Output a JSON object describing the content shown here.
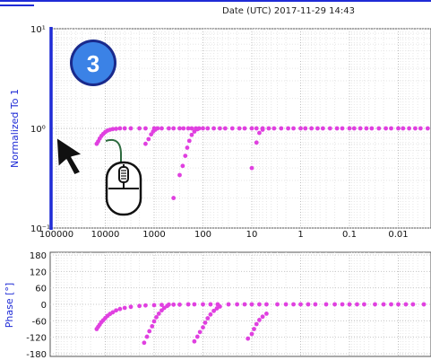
{
  "header": {
    "date_text": "Date (UTC) 2017-11-29 14:43"
  },
  "step_badge": {
    "number": "3"
  },
  "icons": [
    "mouse-scroll-icon",
    "cursor-arrow-icon"
  ],
  "colors": {
    "series": "#e040e0",
    "axis_highlight": "#1f2bd6",
    "badge_fill": "#3b82e6",
    "badge_ring": "#1a2a8c"
  },
  "chart_data": [
    {
      "type": "scatter",
      "ylabel": "Normalized To 1",
      "x_scale": "log",
      "x_reversed": true,
      "y_scale": "log",
      "xlim": [
        1000000,
        0.001
      ],
      "ylim": [
        0.1,
        10
      ],
      "x_ticks": [
        100000,
        10000,
        1000,
        100,
        10,
        1,
        0.1,
        0.01,
        0.001
      ],
      "x_tick_labels": [
        "100000",
        "10000",
        "1000",
        "100",
        "10",
        "1",
        "0.1",
        "0.01",
        "0."
      ],
      "y_ticks": [
        0.1,
        1,
        10
      ],
      "y_tick_labels": [
        "10⁻¹",
        "10⁰",
        "10¹"
      ],
      "grid": true,
      "series": [
        {
          "points": [
            [
              15000,
              0.7
            ],
            [
              14000,
              0.74
            ],
            [
              13000,
              0.79
            ],
            [
              12000,
              0.84
            ],
            [
              11000,
              0.88
            ],
            [
              10000,
              0.92
            ],
            [
              9000,
              0.95
            ],
            [
              8000,
              0.97
            ],
            [
              7000,
              0.985
            ],
            [
              6000,
              0.99
            ],
            [
              5000,
              1
            ],
            [
              4000,
              1
            ],
            [
              3000,
              1
            ],
            [
              2000,
              1
            ],
            [
              1500,
              1
            ],
            [
              1000,
              1
            ],
            [
              700,
              1
            ],
            [
              500,
              1
            ],
            [
              400,
              1
            ],
            [
              300,
              1
            ],
            [
              250,
              1
            ],
            [
              200,
              1
            ],
            [
              170,
              1
            ],
            [
              140,
              1
            ],
            [
              120,
              1
            ],
            [
              100,
              1
            ],
            [
              80,
              1
            ],
            [
              60,
              1
            ],
            [
              45,
              1
            ],
            [
              35,
              1
            ],
            [
              25,
              1
            ],
            [
              18,
              1
            ],
            [
              14,
              1
            ],
            [
              10,
              1
            ],
            [
              8,
              1
            ],
            [
              6,
              1
            ],
            [
              4.5,
              1
            ],
            [
              3.5,
              1
            ],
            [
              2.5,
              1
            ],
            [
              1.8,
              1
            ],
            [
              1.4,
              1
            ],
            [
              1,
              1
            ],
            [
              0.8,
              1
            ],
            [
              0.6,
              1
            ],
            [
              0.45,
              1
            ],
            [
              0.35,
              1
            ],
            [
              0.25,
              1
            ],
            [
              0.18,
              1
            ],
            [
              0.14,
              1
            ],
            [
              0.1,
              1
            ],
            [
              0.08,
              1
            ],
            [
              0.06,
              1
            ],
            [
              0.045,
              1
            ],
            [
              0.035,
              1
            ],
            [
              0.025,
              1
            ],
            [
              0.018,
              1
            ],
            [
              0.014,
              1
            ],
            [
              0.01,
              1
            ],
            [
              0.008,
              1
            ],
            [
              0.006,
              1
            ],
            [
              0.0045,
              1
            ],
            [
              0.0035,
              1
            ],
            [
              0.0025,
              1
            ],
            [
              0.002,
              1
            ],
            [
              0.0015,
              1
            ],
            [
              0.0012,
              1
            ],
            [
              0.001,
              1
            ],
            [
              1500,
              0.7
            ],
            [
              1300,
              0.78
            ],
            [
              1150,
              0.87
            ],
            [
              1050,
              0.93
            ],
            [
              950,
              0.97
            ],
            [
              850,
              1
            ],
            [
              400,
              0.2
            ],
            [
              300,
              0.34
            ],
            [
              260,
              0.42
            ],
            [
              230,
              0.53
            ],
            [
              210,
              0.64
            ],
            [
              190,
              0.75
            ],
            [
              170,
              0.86
            ],
            [
              150,
              0.93
            ],
            [
              130,
              0.98
            ],
            [
              10,
              0.4
            ],
            [
              8,
              0.72
            ],
            [
              7,
              0.9
            ],
            [
              6,
              0.97
            ]
          ]
        }
      ]
    },
    {
      "type": "scatter",
      "ylabel": "Phase [°]",
      "x_scale": "log",
      "x_reversed": true,
      "xlim": [
        1000000,
        0.001
      ],
      "ylim": [
        -180,
        180
      ],
      "y_ticks": [
        180,
        120,
        60,
        0,
        -60,
        -120,
        -180
      ],
      "y_tick_labels": [
        "180",
        "120",
        "60",
        "0",
        "-60",
        "-120",
        "-180"
      ],
      "grid": true,
      "series": [
        {
          "points": [
            [
              15000,
              -90
            ],
            [
              14000,
              -82
            ],
            [
              13000,
              -74
            ],
            [
              12000,
              -65
            ],
            [
              11000,
              -58
            ],
            [
              10000,
              -50
            ],
            [
              9000,
              -42
            ],
            [
              8000,
              -35
            ],
            [
              7000,
              -29
            ],
            [
              6000,
              -22
            ],
            [
              5000,
              -17
            ],
            [
              4000,
              -13
            ],
            [
              3000,
              -9
            ],
            [
              2000,
              -6
            ],
            [
              1500,
              -4
            ],
            [
              1000,
              -3
            ],
            [
              700,
              -2
            ],
            [
              500,
              -1
            ],
            [
              400,
              -1
            ],
            [
              300,
              -1
            ],
            [
              200,
              0
            ],
            [
              150,
              0
            ],
            [
              100,
              0
            ],
            [
              70,
              0
            ],
            [
              50,
              0
            ],
            [
              30,
              0
            ],
            [
              20,
              0
            ],
            [
              14,
              0
            ],
            [
              10,
              0
            ],
            [
              7,
              0
            ],
            [
              5,
              0
            ],
            [
              3,
              0
            ],
            [
              2,
              0
            ],
            [
              1.4,
              0
            ],
            [
              1,
              0
            ],
            [
              0.7,
              0
            ],
            [
              0.5,
              0
            ],
            [
              0.3,
              0
            ],
            [
              0.2,
              0
            ],
            [
              0.14,
              0
            ],
            [
              0.1,
              0
            ],
            [
              0.07,
              0
            ],
            [
              0.05,
              0
            ],
            [
              0.03,
              0
            ],
            [
              0.02,
              0
            ],
            [
              0.014,
              0
            ],
            [
              0.01,
              0
            ],
            [
              0.007,
              0
            ],
            [
              0.005,
              0
            ],
            [
              0.003,
              0
            ],
            [
              0.002,
              0
            ],
            [
              0.0014,
              0
            ],
            [
              0.001,
              0
            ],
            [
              1600,
              -140
            ],
            [
              1400,
              -118
            ],
            [
              1250,
              -98
            ],
            [
              1100,
              -80
            ],
            [
              1000,
              -62
            ],
            [
              900,
              -47
            ],
            [
              800,
              -34
            ],
            [
              700,
              -22
            ],
            [
              620,
              -13
            ],
            [
              540,
              -6
            ],
            [
              150,
              -135
            ],
            [
              130,
              -118
            ],
            [
              115,
              -101
            ],
            [
              100,
              -84
            ],
            [
              90,
              -67
            ],
            [
              80,
              -51
            ],
            [
              70,
              -37
            ],
            [
              60,
              -24
            ],
            [
              52,
              -15
            ],
            [
              45,
              -8
            ],
            [
              12,
              -125
            ],
            [
              10,
              -108
            ],
            [
              9,
              -90
            ],
            [
              8,
              -72
            ],
            [
              7,
              -57
            ],
            [
              6,
              -45
            ],
            [
              5,
              -34
            ]
          ]
        }
      ]
    }
  ]
}
